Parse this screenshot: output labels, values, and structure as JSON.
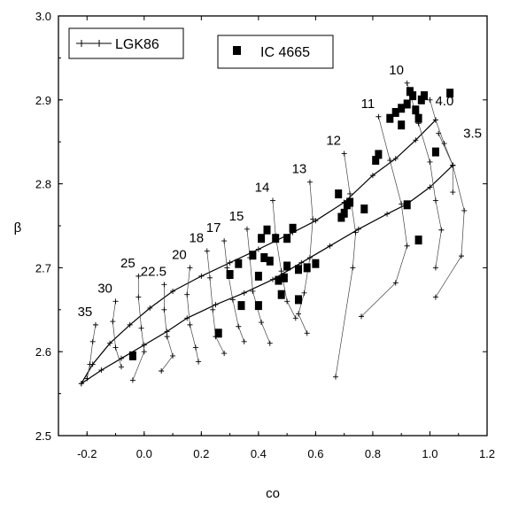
{
  "chart_data": {
    "type": "scatter",
    "xlabel": "co",
    "ylabel": "β",
    "xlim": [
      -0.3,
      1.2
    ],
    "ylim": [
      2.5,
      3.0
    ],
    "x_ticks": [
      "-0.2",
      "0.0",
      "0.2",
      "0.4",
      "0.6",
      "0.8",
      "1.0",
      "1.2"
    ],
    "x_tick_values": [
      -0.2,
      0.0,
      0.2,
      0.4,
      0.6,
      0.8,
      1.0,
      1.2
    ],
    "y_ticks": [
      "2.5",
      "2.6",
      "2.7",
      "2.8",
      "2.9",
      "3.0"
    ],
    "y_tick_values": [
      2.5,
      2.6,
      2.7,
      2.8,
      2.9,
      3.0
    ],
    "legend": {
      "model": "LGK86",
      "observed": "IC 4665"
    },
    "model_grid": {
      "metallicity_tracks": [
        [
          [
            -0.22,
            2.562
          ],
          [
            -0.18,
            2.585
          ],
          [
            -0.12,
            2.61
          ],
          [
            -0.05,
            2.632
          ],
          [
            0.02,
            2.652
          ],
          [
            0.1,
            2.672
          ],
          [
            0.2,
            2.69
          ],
          [
            0.3,
            2.706
          ],
          [
            0.4,
            2.722
          ],
          [
            0.52,
            2.742
          ],
          [
            0.6,
            2.756
          ],
          [
            0.7,
            2.778
          ],
          [
            0.8,
            2.81
          ],
          [
            0.88,
            2.83
          ],
          [
            0.95,
            2.852
          ],
          [
            1.02,
            2.876
          ]
        ],
        [
          [
            -0.22,
            2.562
          ],
          [
            -0.15,
            2.578
          ],
          [
            -0.08,
            2.592
          ],
          [
            0.0,
            2.608
          ],
          [
            0.08,
            2.624
          ],
          [
            0.15,
            2.64
          ],
          [
            0.25,
            2.656
          ],
          [
            0.35,
            2.67
          ],
          [
            0.45,
            2.686
          ],
          [
            0.55,
            2.706
          ],
          [
            0.65,
            2.726
          ],
          [
            0.75,
            2.746
          ],
          [
            0.85,
            2.764
          ],
          [
            0.92,
            2.776
          ],
          [
            1.0,
            2.796
          ],
          [
            1.08,
            2.822
          ]
        ]
      ],
      "isochrones": [
        {
          "label": "35",
          "points": [
            [
              -0.17,
              2.632
            ],
            [
              -0.18,
              2.612
            ],
            [
              -0.19,
              2.585
            ],
            [
              -0.2,
              2.568
            ]
          ]
        },
        {
          "label": "30",
          "points": [
            [
              -0.1,
              2.66
            ],
            [
              -0.11,
              2.636
            ],
            [
              -0.1,
              2.605
            ],
            [
              -0.08,
              2.582
            ]
          ]
        },
        {
          "label": "25",
          "points": [
            [
              -0.02,
              2.69
            ],
            [
              -0.02,
              2.665
            ],
            [
              -0.01,
              2.628
            ],
            [
              0.0,
              2.6
            ],
            [
              -0.04,
              2.566
            ]
          ]
        },
        {
          "label": "22.5",
          "points": [
            [
              0.07,
              2.68
            ],
            [
              0.07,
              2.65
            ],
            [
              0.08,
              2.618
            ],
            [
              0.1,
              2.595
            ],
            [
              0.06,
              2.577
            ]
          ]
        },
        {
          "label": "20",
          "points": [
            [
              0.16,
              2.7
            ],
            [
              0.15,
              2.668
            ],
            [
              0.16,
              2.632
            ],
            [
              0.18,
              2.605
            ],
            [
              0.19,
              2.588
            ]
          ]
        },
        {
          "label": "18",
          "points": [
            [
              0.22,
              2.72
            ],
            [
              0.23,
              2.688
            ],
            [
              0.24,
              2.65
            ],
            [
              0.25,
              2.618
            ],
            [
              0.28,
              2.598
            ]
          ]
        },
        {
          "label": "17",
          "points": [
            [
              0.28,
              2.732
            ],
            [
              0.29,
              2.7
            ],
            [
              0.31,
              2.662
            ],
            [
              0.33,
              2.63
            ],
            [
              0.35,
              2.612
            ]
          ]
        },
        {
          "label": "15",
          "points": [
            [
              0.36,
              2.746
            ],
            [
              0.37,
              2.712
            ],
            [
              0.38,
              2.672
            ],
            [
              0.41,
              2.635
            ],
            [
              0.44,
              2.61
            ]
          ]
        },
        {
          "label": "14",
          "points": [
            [
              0.45,
              2.78
            ],
            [
              0.46,
              2.738
            ],
            [
              0.48,
              2.696
            ],
            [
              0.5,
              2.66
            ],
            [
              0.53,
              2.64
            ]
          ]
        },
        {
          "label": "13",
          "points": [
            [
              0.58,
              2.802
            ],
            [
              0.59,
              2.758
            ],
            [
              0.58,
              2.712
            ],
            [
              0.56,
              2.67
            ],
            [
              0.54,
              2.645
            ],
            [
              0.57,
              2.622
            ]
          ]
        },
        {
          "label": "12",
          "points": [
            [
              0.7,
              2.836
            ],
            [
              0.72,
              2.788
            ],
            [
              0.74,
              2.742
            ],
            [
              0.73,
              2.7
            ],
            [
              0.67,
              2.57
            ]
          ]
        },
        {
          "label": "11",
          "points": [
            [
              0.82,
              2.88
            ],
            [
              0.86,
              2.828
            ],
            [
              0.9,
              2.776
            ],
            [
              0.92,
              2.726
            ],
            [
              0.88,
              2.682
            ],
            [
              0.76,
              2.642
            ]
          ]
        },
        {
          "label": "10",
          "points": [
            [
              0.92,
              2.92
            ],
            [
              0.96,
              2.872
            ],
            [
              1.0,
              2.826
            ],
            [
              1.02,
              2.78
            ],
            [
              1.04,
              2.745
            ],
            [
              1.02,
              2.7
            ]
          ]
        },
        {
          "label": "4.0",
          "points": [
            [
              1.0,
              2.9
            ],
            [
              1.02,
              2.876
            ],
            [
              1.05,
              2.848
            ],
            [
              1.08,
              2.822
            ],
            [
              1.08,
              2.79
            ]
          ]
        },
        {
          "label": "3.5",
          "points": [
            [
              1.03,
              2.86
            ],
            [
              1.08,
              2.822
            ],
            [
              1.12,
              2.768
            ],
            [
              1.11,
              2.714
            ],
            [
              1.02,
              2.665
            ]
          ]
        }
      ]
    },
    "observed_points": [
      [
        -0.04,
        2.595
      ],
      [
        0.26,
        2.622
      ],
      [
        0.34,
        2.655
      ],
      [
        0.4,
        2.655
      ],
      [
        0.48,
        2.668
      ],
      [
        0.54,
        2.662
      ],
      [
        0.3,
        2.692
      ],
      [
        0.33,
        2.705
      ],
      [
        0.38,
        2.715
      ],
      [
        0.4,
        2.69
      ],
      [
        0.42,
        2.712
      ],
      [
        0.44,
        2.708
      ],
      [
        0.41,
        2.735
      ],
      [
        0.43,
        2.745
      ],
      [
        0.46,
        2.735
      ],
      [
        0.5,
        2.735
      ],
      [
        0.52,
        2.747
      ],
      [
        0.47,
        2.685
      ],
      [
        0.49,
        2.688
      ],
      [
        0.5,
        2.702
      ],
      [
        0.54,
        2.698
      ],
      [
        0.57,
        2.7
      ],
      [
        0.6,
        2.705
      ],
      [
        0.68,
        2.788
      ],
      [
        0.69,
        2.76
      ],
      [
        0.7,
        2.765
      ],
      [
        0.71,
        2.775
      ],
      [
        0.72,
        2.778
      ],
      [
        0.77,
        2.77
      ],
      [
        0.81,
        2.828
      ],
      [
        0.82,
        2.835
      ],
      [
        0.86,
        2.878
      ],
      [
        0.88,
        2.885
      ],
      [
        0.9,
        2.87
      ],
      [
        0.9,
        2.89
      ],
      [
        0.92,
        2.895
      ],
      [
        0.93,
        2.91
      ],
      [
        0.94,
        2.905
      ],
      [
        0.95,
        2.888
      ],
      [
        0.96,
        2.878
      ],
      [
        0.97,
        2.9
      ],
      [
        0.98,
        2.905
      ],
      [
        0.92,
        2.775
      ],
      [
        0.96,
        2.733
      ],
      [
        1.02,
        2.838
      ],
      [
        1.07,
        2.908
      ]
    ]
  }
}
